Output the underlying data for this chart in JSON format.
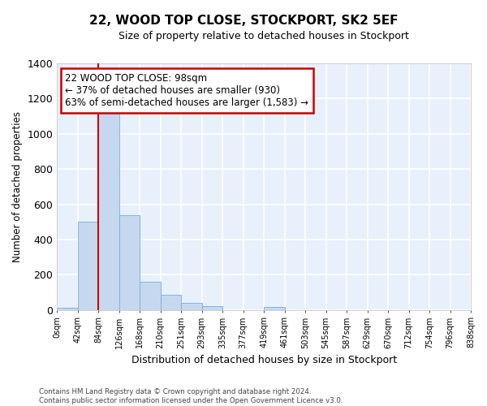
{
  "title": "22, WOOD TOP CLOSE, STOCKPORT, SK2 5EF",
  "subtitle": "Size of property relative to detached houses in Stockport",
  "xlabel": "Distribution of detached houses by size in Stockport",
  "ylabel": "Number of detached properties",
  "bar_color": "#c5d8f0",
  "bar_edge_color": "#7aadd4",
  "background_color": "#e8f0fb",
  "grid_color": "#ffffff",
  "fig_background": "#ffffff",
  "bin_labels": [
    "0sqm",
    "42sqm",
    "84sqm",
    "126sqm",
    "168sqm",
    "210sqm",
    "251sqm",
    "293sqm",
    "335sqm",
    "377sqm",
    "419sqm",
    "461sqm",
    "503sqm",
    "545sqm",
    "587sqm",
    "629sqm",
    "670sqm",
    "712sqm",
    "754sqm",
    "796sqm",
    "838sqm"
  ],
  "bar_heights": [
    10,
    500,
    1160,
    540,
    160,
    85,
    38,
    22,
    0,
    0,
    15,
    0,
    0,
    0,
    0,
    0,
    0,
    0,
    0,
    0
  ],
  "ylim": [
    0,
    1400
  ],
  "yticks": [
    0,
    200,
    400,
    600,
    800,
    1000,
    1200,
    1400
  ],
  "property_bin_index": 2,
  "annotation_text": "22 WOOD TOP CLOSE: 98sqm\n← 37% of detached houses are smaller (930)\n63% of semi-detached houses are larger (1,583) →",
  "annotation_box_color": "#ffffff",
  "annotation_box_edge_color": "#cc0000",
  "vline_color": "#cc0000",
  "footer_line1": "Contains HM Land Registry data © Crown copyright and database right 2024.",
  "footer_line2": "Contains public sector information licensed under the Open Government Licence v3.0."
}
